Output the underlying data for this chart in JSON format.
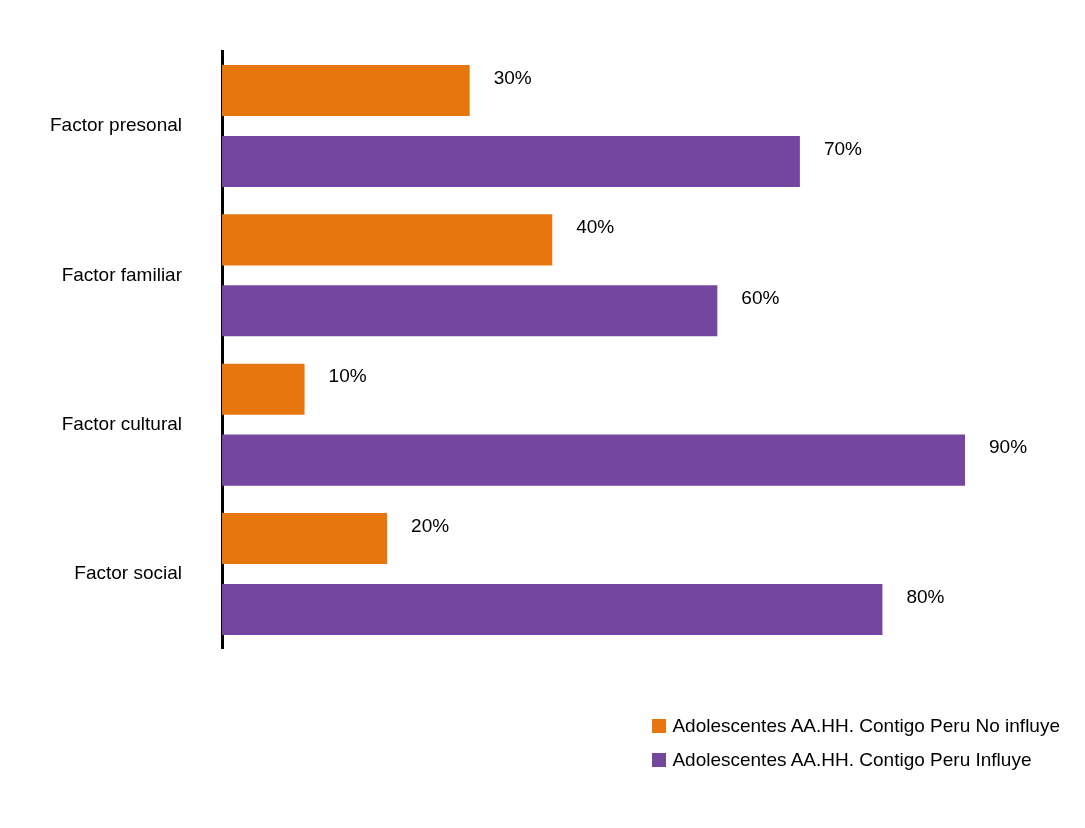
{
  "chart_data": {
    "type": "bar",
    "orientation": "horizontal",
    "categories": [
      "Factor presonal",
      "Factor familiar",
      "Factor cultural",
      "Factor social"
    ],
    "series": [
      {
        "name": "Adolescentes AA.HH. Contigo Peru No influye",
        "color": "#e8760e",
        "values": [
          30,
          40,
          10,
          20
        ],
        "value_labels": [
          "30%",
          "40%",
          "10%",
          "20%"
        ]
      },
      {
        "name": "Adolescentes AA.HH. Contigo Peru Influye",
        "color": "#7446a0",
        "values": [
          70,
          60,
          90,
          80
        ],
        "value_labels": [
          "70%",
          "60%",
          "90%",
          "80%"
        ]
      }
    ],
    "legend": "bottom right",
    "grid": false,
    "tick_labels": "y"
  }
}
